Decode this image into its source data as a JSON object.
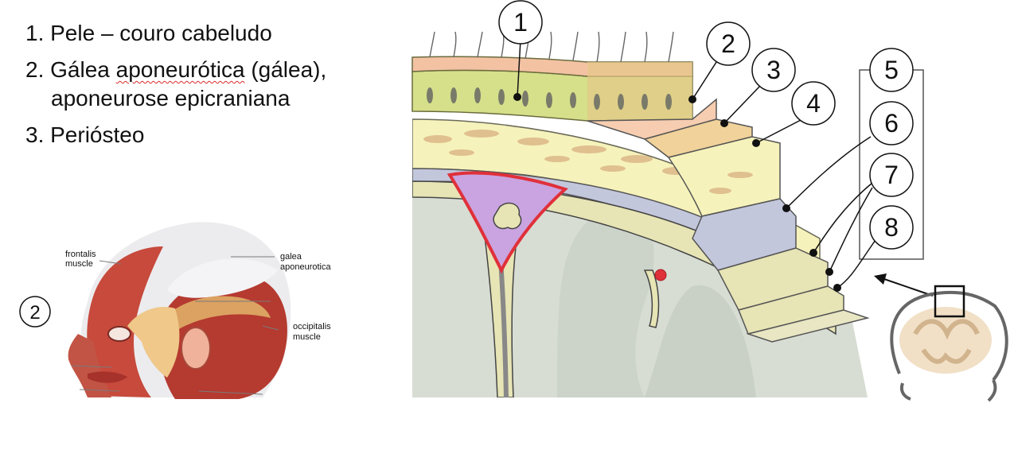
{
  "legend": {
    "item1": "1. Pele – couro cabeludo",
    "item2_prefix": "2. Gálea ",
    "item2_spell": "aponeurótica",
    "item2_suffix": "  (gálea),",
    "item2_cont": "aponeurose epicraniana",
    "item3": "3. Periósteo"
  },
  "head_figure": {
    "marker": "2",
    "labels": {
      "frontalis_1": "frontalis",
      "frontalis_2": "muscle",
      "galea_1": "galea",
      "galea_2": "aponeurotica",
      "occipitalis_1": "occipitalis",
      "occipitalis_2": "muscle"
    }
  },
  "section_figure": {
    "callouts": [
      "1",
      "2",
      "3",
      "4",
      "5",
      "6",
      "7",
      "8"
    ]
  },
  "colors": {
    "skin": "#f3c2a3",
    "galea": "#f6cdb0",
    "periosteum": "#f0d29a",
    "bone": "#f6f2bb",
    "dura": "#c3c7dc",
    "arachnoid": "#e7e4b5",
    "brain": "#d7ddd3",
    "sinus": "#c9a4e0",
    "vessel_red": "#e0303a"
  }
}
